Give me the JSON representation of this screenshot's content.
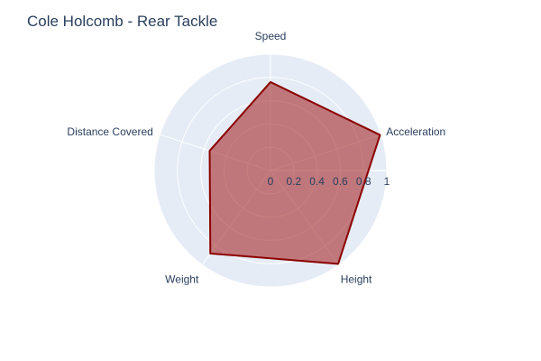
{
  "chart_data": {
    "type": "radar",
    "title": "Cole Holcomb - Rear Tackle",
    "categories": [
      "Speed",
      "Acceleration",
      "Height",
      "Weight",
      "Distance Covered"
    ],
    "series": [
      {
        "values": [
          0.76,
          0.99,
          0.99,
          0.88,
          0.55
        ],
        "line_color": "#8b0000",
        "fill_color": "#a52a2a",
        "fill_opacity": 0.6
      }
    ],
    "radial_range": [
      0,
      1
    ],
    "radial_ticks": [
      "0",
      "0.2",
      "0.4",
      "0.6",
      "0.8",
      "1"
    ],
    "radial_tick_values": [
      0,
      0.2,
      0.4,
      0.6,
      0.8,
      1
    ],
    "background_color": "#e5ecf6",
    "grid_color": "#ffffff",
    "grid": true,
    "legend": false
  }
}
